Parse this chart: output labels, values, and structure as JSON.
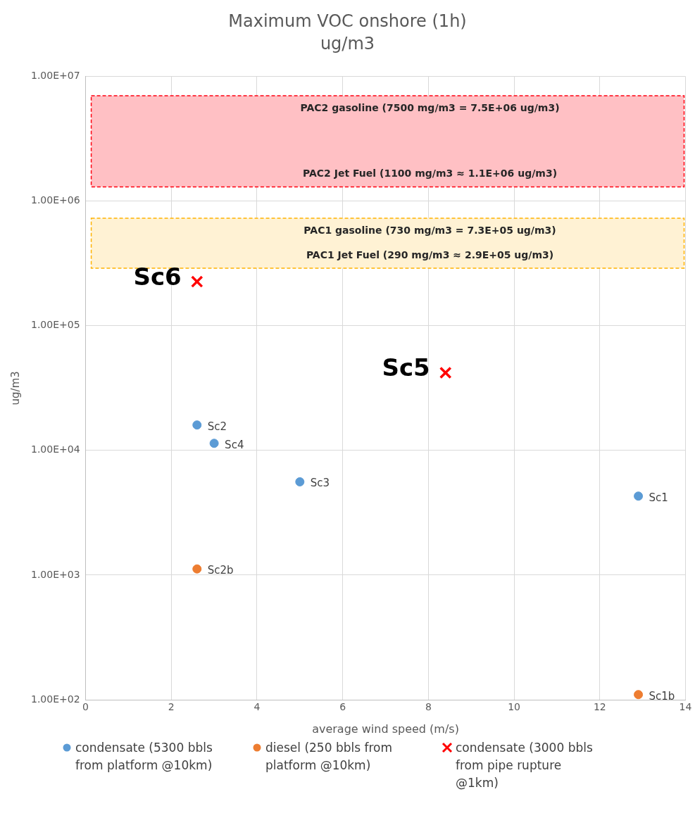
{
  "chart_data": {
    "type": "scatter",
    "title": "Maximum VOC onshore (1h)",
    "subtitle": "ug/m3",
    "xlabel": "average wind speed (m/s)",
    "ylabel": "ug/m3",
    "log": "y",
    "grid": true,
    "legend": "bottom",
    "xlim": [
      0,
      14
    ],
    "xticks": [
      0,
      2,
      4,
      6,
      8,
      10,
      12,
      14
    ],
    "ylim": [
      100,
      10000000
    ],
    "yticks": [
      {
        "value": 100,
        "label": "1.00E+02"
      },
      {
        "value": 1000,
        "label": "1.00E+03"
      },
      {
        "value": 10000,
        "label": "1.00E+04"
      },
      {
        "value": 100000,
        "label": "1.00E+05"
      },
      {
        "value": 1000000,
        "label": "1.00E+06"
      },
      {
        "value": 10000000,
        "label": "1.00E+07"
      }
    ],
    "bands": [
      {
        "axis": "y",
        "from": 1300000,
        "to": 7000000,
        "color": "#ffc0c4",
        "label": "PAC2 gasoline (7500 mg/m3 = 7.5E+06 ug/m3)\nPAC2 Jet Fuel (1100 mg/m3 ≈ 1.1E+06 ug/m3)"
      },
      {
        "axis": "y",
        "from": 290000,
        "to": 730000,
        "color": "#fff2d4",
        "label": "PAC1 gasoline (730 mg/m3 = 7.3E+05 ug/m3)\nPAC1 Jet Fuel (290 mg/m3 ≈ 2.9E+05 ug/m3)"
      }
    ],
    "series": [
      {
        "name": "condensate (5300 bbls from platform @10km)",
        "color": "#5b9bd5",
        "marker": "circle",
        "x": [
          2.6,
          3,
          5,
          12.9
        ],
        "values": [
          16000,
          11400,
          5600,
          4300
        ],
        "value_labels": [
          "Sc2",
          "Sc4",
          "Sc3",
          "Sc1"
        ]
      },
      {
        "name": "diesel (250 bbls from platform @10km)",
        "color": "#ed7d31",
        "marker": "circle",
        "x": [
          2.6,
          12.9
        ],
        "values": [
          1120,
          110
        ],
        "value_labels": [
          "Sc2b",
          "Sc1b"
        ]
      },
      {
        "name": "condensate (3000 bbls from pipe rupture @1km)",
        "color": "#ff0000",
        "marker": "cross",
        "x": [
          2.6,
          8.4
        ],
        "values": [
          226000,
          42000
        ],
        "value_labels": [
          "Sc6",
          "Sc5"
        ]
      }
    ]
  }
}
